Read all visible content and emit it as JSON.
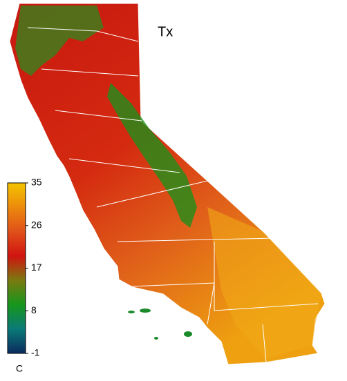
{
  "title": "Tx",
  "colorbar": {
    "unit": "C",
    "lim": [
      -1,
      35
    ],
    "ticks": [
      -1,
      8,
      17,
      26,
      35
    ],
    "colors": [
      "#0b2a5e",
      "#0a7a78",
      "#16961c",
      "#7a7a10",
      "#d01410",
      "#e0501a",
      "#ec8a0c",
      "#f4c400"
    ]
  }
}
